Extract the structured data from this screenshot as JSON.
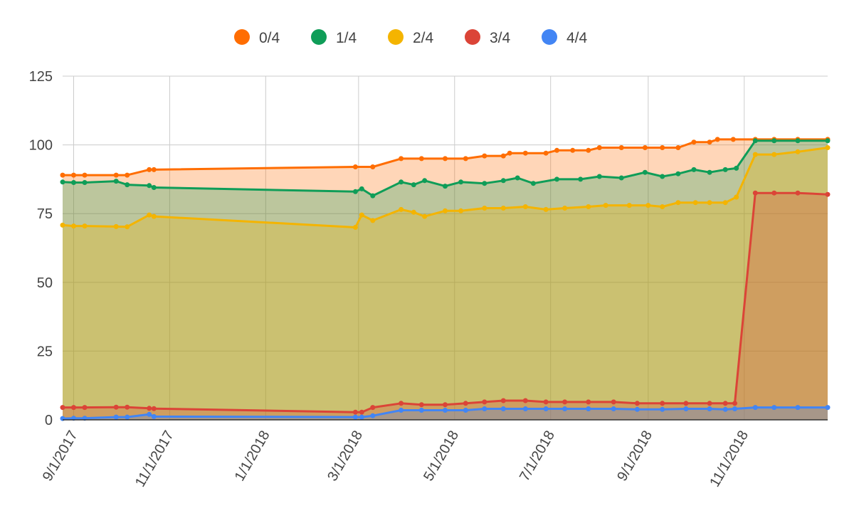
{
  "chart_data": {
    "type": "area",
    "stacked": false,
    "x_type": "date",
    "xlim": [
      "2017-08-25",
      "2018-12-24"
    ],
    "ylim": [
      0,
      125
    ],
    "yticks": [
      0,
      25,
      50,
      75,
      100,
      125
    ],
    "xticks": [
      {
        "date": "2017-09-01",
        "label": "9/1/2017"
      },
      {
        "date": "2017-11-01",
        "label": "11/1/2017"
      },
      {
        "date": "2018-01-01",
        "label": "1/1/2018"
      },
      {
        "date": "2018-03-01",
        "label": "3/1/2018"
      },
      {
        "date": "2018-05-01",
        "label": "5/1/2018"
      },
      {
        "date": "2018-07-01",
        "label": "7/1/2018"
      },
      {
        "date": "2018-09-01",
        "label": "9/1/2018"
      },
      {
        "date": "2018-11-01",
        "label": "11/1/2018"
      }
    ],
    "grid": true,
    "legend_position": "top",
    "series": [
      {
        "name": "0/4",
        "color": "#ff6d01",
        "fill": "#fccdb2",
        "points": [
          [
            "2017-08-25",
            89
          ],
          [
            "2017-09-01",
            89
          ],
          [
            "2017-09-08",
            89
          ],
          [
            "2017-09-28",
            89
          ],
          [
            "2017-10-05",
            89
          ],
          [
            "2017-10-19",
            91
          ],
          [
            "2017-10-22",
            91
          ],
          [
            "2018-02-27",
            92
          ],
          [
            "2018-03-10",
            92
          ],
          [
            "2018-03-28",
            95
          ],
          [
            "2018-04-10",
            95
          ],
          [
            "2018-04-25",
            95
          ],
          [
            "2018-05-08",
            95
          ],
          [
            "2018-05-20",
            96
          ],
          [
            "2018-06-01",
            96
          ],
          [
            "2018-06-05",
            97
          ],
          [
            "2018-06-15",
            97
          ],
          [
            "2018-06-28",
            97
          ],
          [
            "2018-07-05",
            98
          ],
          [
            "2018-07-15",
            98
          ],
          [
            "2018-07-25",
            98
          ],
          [
            "2018-08-01",
            99
          ],
          [
            "2018-08-15",
            99
          ],
          [
            "2018-08-30",
            99
          ],
          [
            "2018-09-10",
            99
          ],
          [
            "2018-09-20",
            99
          ],
          [
            "2018-09-30",
            101
          ],
          [
            "2018-10-10",
            101
          ],
          [
            "2018-10-15",
            102
          ],
          [
            "2018-10-25",
            102
          ],
          [
            "2018-11-08",
            102
          ],
          [
            "2018-11-20",
            102
          ],
          [
            "2018-12-05",
            102
          ],
          [
            "2018-12-24",
            102
          ]
        ]
      },
      {
        "name": "1/4",
        "color": "#0f9d58",
        "fill": "#b3e2cd",
        "points": [
          [
            "2017-08-25",
            86.5
          ],
          [
            "2017-09-01",
            86.3
          ],
          [
            "2017-09-08",
            86.3
          ],
          [
            "2017-09-28",
            86.8
          ],
          [
            "2017-10-05",
            85.5
          ],
          [
            "2017-10-19",
            85.2
          ],
          [
            "2017-10-22",
            84.5
          ],
          [
            "2018-02-27",
            83
          ],
          [
            "2018-03-03",
            84
          ],
          [
            "2018-03-10",
            81.5
          ],
          [
            "2018-03-28",
            86.5
          ],
          [
            "2018-04-05",
            85.5
          ],
          [
            "2018-04-12",
            87
          ],
          [
            "2018-04-25",
            85
          ],
          [
            "2018-05-05",
            86.5
          ],
          [
            "2018-05-20",
            86
          ],
          [
            "2018-06-01",
            87
          ],
          [
            "2018-06-10",
            88
          ],
          [
            "2018-06-20",
            86
          ],
          [
            "2018-07-05",
            87.5
          ],
          [
            "2018-07-20",
            87.5
          ],
          [
            "2018-08-01",
            88.5
          ],
          [
            "2018-08-15",
            88
          ],
          [
            "2018-08-30",
            90
          ],
          [
            "2018-09-10",
            88.5
          ],
          [
            "2018-09-20",
            89.5
          ],
          [
            "2018-09-30",
            91
          ],
          [
            "2018-10-10",
            90
          ],
          [
            "2018-10-20",
            91
          ],
          [
            "2018-10-27",
            91.5
          ],
          [
            "2018-11-08",
            101.5
          ],
          [
            "2018-11-20",
            101.5
          ],
          [
            "2018-12-05",
            101.5
          ],
          [
            "2018-12-24",
            101.5
          ]
        ]
      },
      {
        "name": "2/4",
        "color": "#f4b400",
        "fill": "#fce8b2",
        "points": [
          [
            "2017-08-25",
            70.8
          ],
          [
            "2017-09-01",
            70.5
          ],
          [
            "2017-09-08",
            70.5
          ],
          [
            "2017-09-28",
            70.3
          ],
          [
            "2017-10-05",
            70.2
          ],
          [
            "2017-10-19",
            74.5
          ],
          [
            "2017-10-22",
            74
          ],
          [
            "2018-02-27",
            70
          ],
          [
            "2018-03-03",
            74.5
          ],
          [
            "2018-03-10",
            72.5
          ],
          [
            "2018-03-28",
            76.5
          ],
          [
            "2018-04-05",
            75.5
          ],
          [
            "2018-04-12",
            74
          ],
          [
            "2018-04-25",
            76
          ],
          [
            "2018-05-05",
            76
          ],
          [
            "2018-05-20",
            77
          ],
          [
            "2018-06-01",
            77
          ],
          [
            "2018-06-15",
            77.5
          ],
          [
            "2018-06-28",
            76.5
          ],
          [
            "2018-07-10",
            77
          ],
          [
            "2018-07-25",
            77.5
          ],
          [
            "2018-08-05",
            78
          ],
          [
            "2018-08-20",
            78
          ],
          [
            "2018-09-01",
            78
          ],
          [
            "2018-09-10",
            77.5
          ],
          [
            "2018-09-20",
            79
          ],
          [
            "2018-10-01",
            79
          ],
          [
            "2018-10-10",
            79
          ],
          [
            "2018-10-20",
            79
          ],
          [
            "2018-10-27",
            81
          ],
          [
            "2018-11-08",
            96.5
          ],
          [
            "2018-11-20",
            96.5
          ],
          [
            "2018-12-05",
            97.5
          ],
          [
            "2018-12-24",
            99
          ]
        ]
      },
      {
        "name": "3/4",
        "color": "#db4437",
        "fill": "#f4c7c3",
        "points": [
          [
            "2017-08-25",
            4.5
          ],
          [
            "2017-09-01",
            4.5
          ],
          [
            "2017-09-08",
            4.5
          ],
          [
            "2017-09-28",
            4.6
          ],
          [
            "2017-10-05",
            4.6
          ],
          [
            "2017-10-19",
            4.2
          ],
          [
            "2017-10-22",
            4.1
          ],
          [
            "2018-02-27",
            2.8
          ],
          [
            "2018-03-03",
            2.8
          ],
          [
            "2018-03-10",
            4.5
          ],
          [
            "2018-03-28",
            6
          ],
          [
            "2018-04-10",
            5.5
          ],
          [
            "2018-04-25",
            5.5
          ],
          [
            "2018-05-08",
            6
          ],
          [
            "2018-05-20",
            6.5
          ],
          [
            "2018-06-01",
            7
          ],
          [
            "2018-06-15",
            7
          ],
          [
            "2018-06-28",
            6.5
          ],
          [
            "2018-07-10",
            6.5
          ],
          [
            "2018-07-25",
            6.5
          ],
          [
            "2018-08-10",
            6.5
          ],
          [
            "2018-08-25",
            6
          ],
          [
            "2018-09-10",
            6
          ],
          [
            "2018-09-25",
            6
          ],
          [
            "2018-10-10",
            6
          ],
          [
            "2018-10-20",
            6
          ],
          [
            "2018-10-26",
            6
          ],
          [
            "2018-11-08",
            82.5
          ],
          [
            "2018-11-20",
            82.5
          ],
          [
            "2018-12-05",
            82.5
          ],
          [
            "2018-12-24",
            82
          ]
        ]
      },
      {
        "name": "4/4",
        "color": "#4285f4",
        "fill": "#c6dafc",
        "points": [
          [
            "2017-08-25",
            0.5
          ],
          [
            "2017-09-01",
            0.6
          ],
          [
            "2017-09-08",
            0.6
          ],
          [
            "2017-09-28",
            1
          ],
          [
            "2017-10-05",
            1
          ],
          [
            "2017-10-19",
            2
          ],
          [
            "2017-10-22",
            1.2
          ],
          [
            "2018-02-27",
            1
          ],
          [
            "2018-03-03",
            1
          ],
          [
            "2018-03-10",
            1.5
          ],
          [
            "2018-03-28",
            3.5
          ],
          [
            "2018-04-10",
            3.5
          ],
          [
            "2018-04-25",
            3.5
          ],
          [
            "2018-05-08",
            3.5
          ],
          [
            "2018-05-20",
            4
          ],
          [
            "2018-06-01",
            4
          ],
          [
            "2018-06-15",
            4
          ],
          [
            "2018-06-28",
            4
          ],
          [
            "2018-07-10",
            4
          ],
          [
            "2018-07-25",
            4
          ],
          [
            "2018-08-10",
            4
          ],
          [
            "2018-08-25",
            3.8
          ],
          [
            "2018-09-10",
            3.8
          ],
          [
            "2018-09-25",
            4
          ],
          [
            "2018-10-10",
            4
          ],
          [
            "2018-10-20",
            3.8
          ],
          [
            "2018-10-26",
            4
          ],
          [
            "2018-11-08",
            4.5
          ],
          [
            "2018-11-20",
            4.5
          ],
          [
            "2018-12-05",
            4.5
          ],
          [
            "2018-12-24",
            4.5
          ]
        ]
      }
    ]
  }
}
